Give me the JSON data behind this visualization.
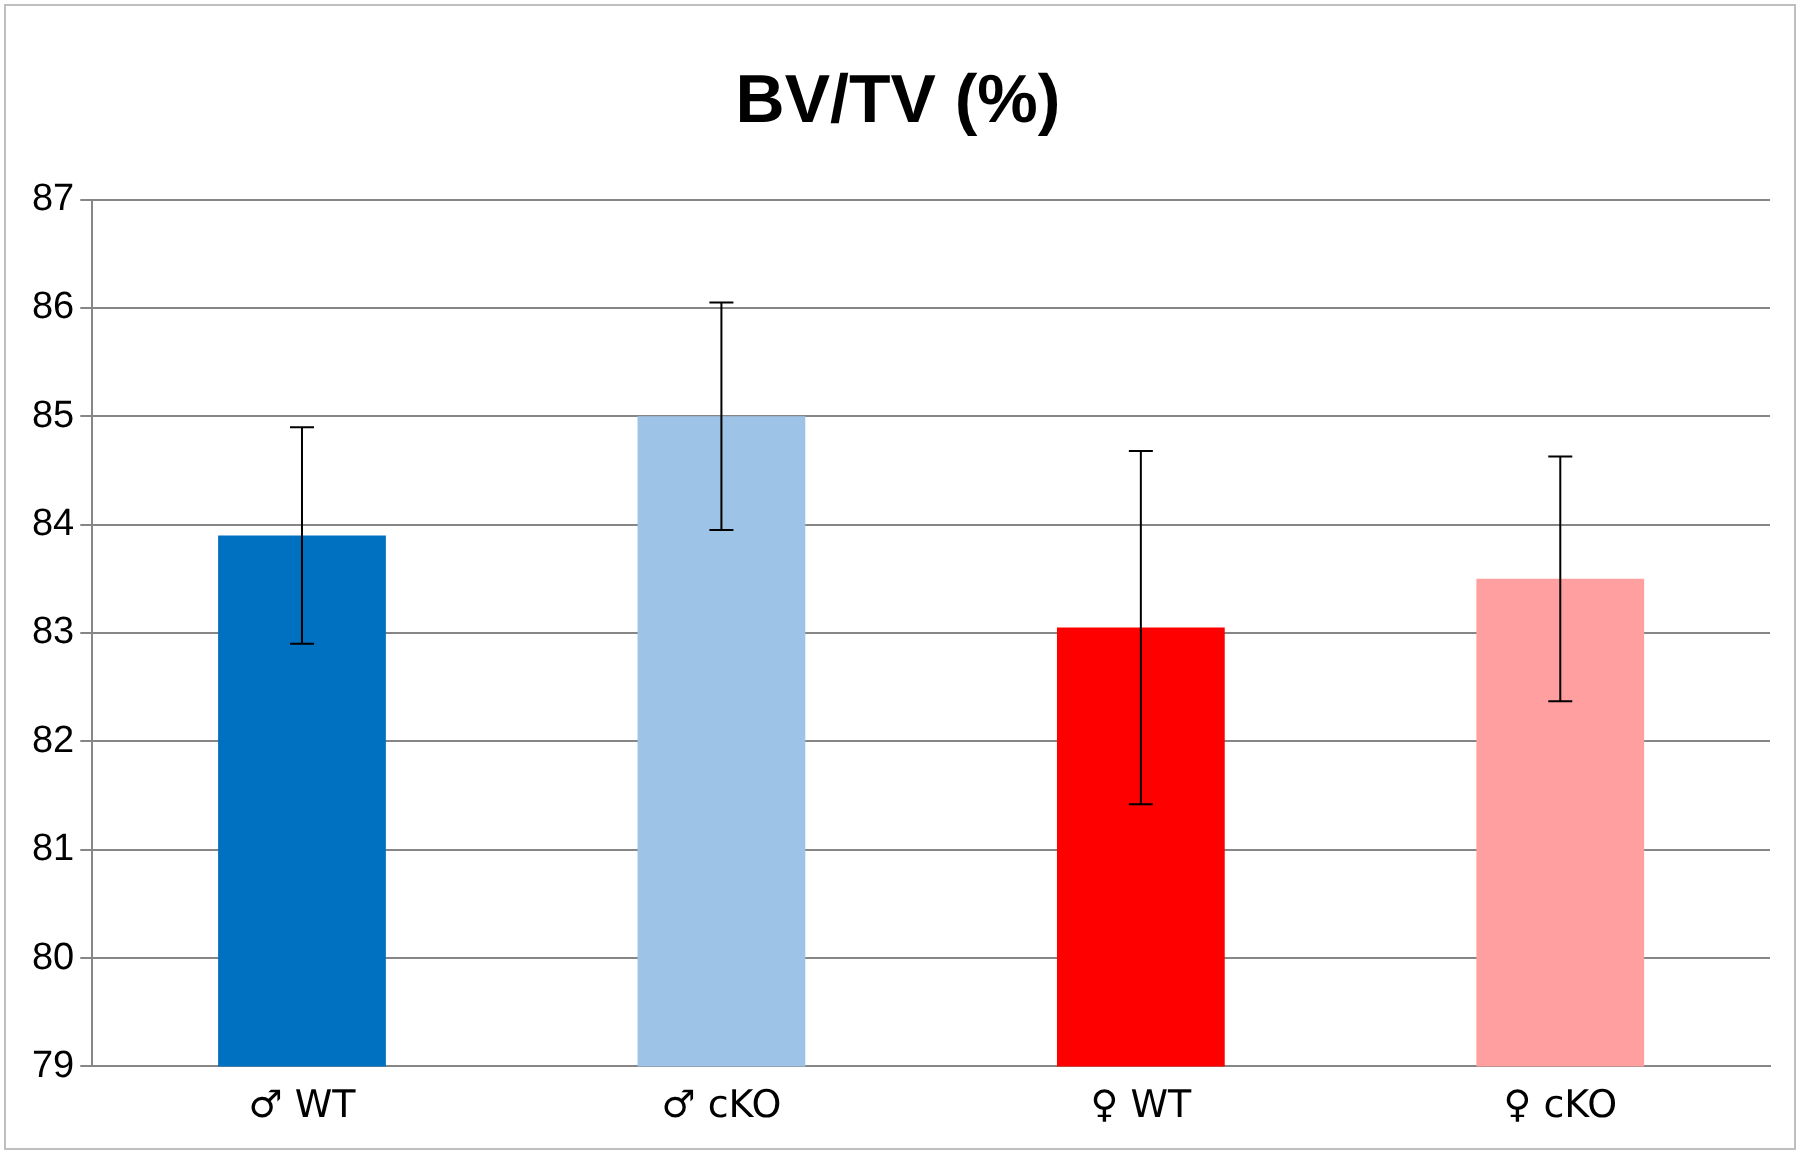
{
  "chart_data": {
    "type": "bar",
    "title": "BV/TV (%)",
    "categories": [
      "♂ WT",
      "♂ cKO",
      "♀ WT",
      "♀ cKO"
    ],
    "values": [
      83.9,
      85.0,
      83.05,
      83.5
    ],
    "colors": [
      "#0070c0",
      "#9dc3e6",
      "#ff0000",
      "#ff9f9f"
    ],
    "errors": [
      1.0,
      1.05,
      1.63,
      1.13
    ],
    "ylim": [
      79,
      87
    ],
    "yticks": [
      79,
      80,
      81,
      82,
      83,
      84,
      85,
      86,
      87
    ],
    "grid": "y",
    "legend": false
  }
}
